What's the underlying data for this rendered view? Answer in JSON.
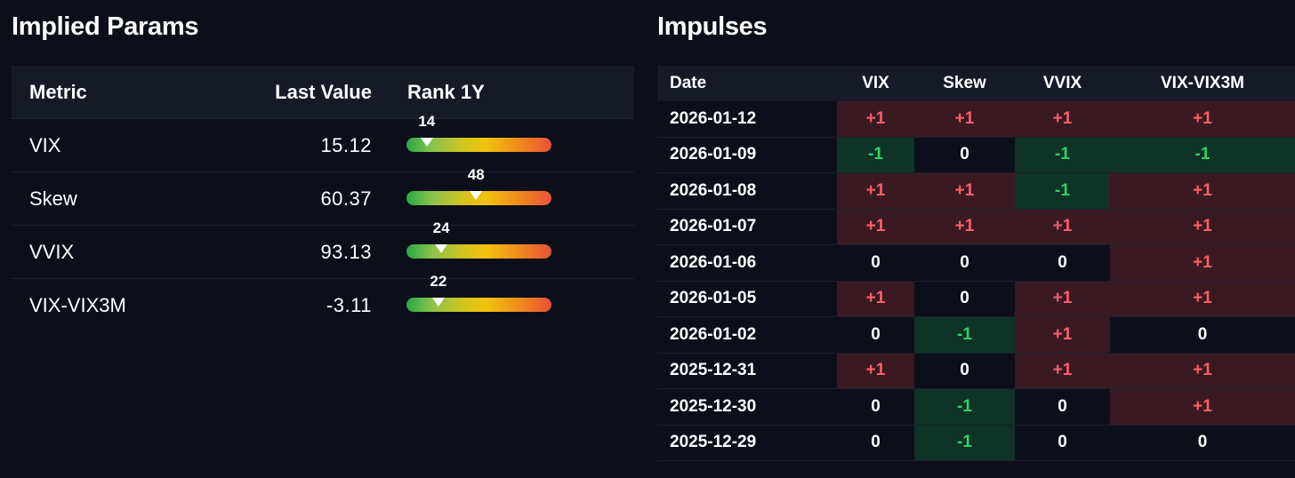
{
  "implied_params": {
    "title": "Implied Params",
    "headers": {
      "metric": "Metric",
      "last_value": "Last Value",
      "rank": "Rank 1Y"
    },
    "rows": [
      {
        "metric": "VIX",
        "value": "15.12",
        "rank": "14",
        "rank_pct": 14
      },
      {
        "metric": "Skew",
        "value": "60.37",
        "rank": "48",
        "rank_pct": 48
      },
      {
        "metric": "VVIX",
        "value": "93.13",
        "rank": "24",
        "rank_pct": 24
      },
      {
        "metric": "VIX-VIX3M",
        "value": "-3.11",
        "rank": "22",
        "rank_pct": 22
      }
    ]
  },
  "impulses": {
    "title": "Impulses",
    "headers": [
      "Date",
      "VIX",
      "Skew",
      "VVIX",
      "VIX-VIX3M"
    ],
    "rows": [
      {
        "date": "2026-01-12",
        "values": [
          "+1",
          "+1",
          "+1",
          "+1"
        ]
      },
      {
        "date": "2026-01-09",
        "values": [
          "-1",
          "0",
          "-1",
          "-1"
        ]
      },
      {
        "date": "2026-01-08",
        "values": [
          "+1",
          "+1",
          "-1",
          "+1"
        ]
      },
      {
        "date": "2026-01-07",
        "values": [
          "+1",
          "+1",
          "+1",
          "+1"
        ]
      },
      {
        "date": "2026-01-06",
        "values": [
          "0",
          "0",
          "0",
          "+1"
        ]
      },
      {
        "date": "2026-01-05",
        "values": [
          "+1",
          "0",
          "+1",
          "+1"
        ]
      },
      {
        "date": "2026-01-02",
        "values": [
          "0",
          "-1",
          "+1",
          "0"
        ]
      },
      {
        "date": "2025-12-31",
        "values": [
          "+1",
          "0",
          "+1",
          "+1"
        ]
      },
      {
        "date": "2025-12-30",
        "values": [
          "0",
          "-1",
          "0",
          "+1"
        ]
      },
      {
        "date": "2025-12-29",
        "values": [
          "0",
          "-1",
          "0",
          "0"
        ]
      }
    ]
  },
  "colors": {
    "background": "#0c0f1a",
    "positive_bg": "#3a1a22",
    "positive_text": "#ff5f6a",
    "negative_bg": "#0f3326",
    "negative_text": "#2fd16a"
  }
}
